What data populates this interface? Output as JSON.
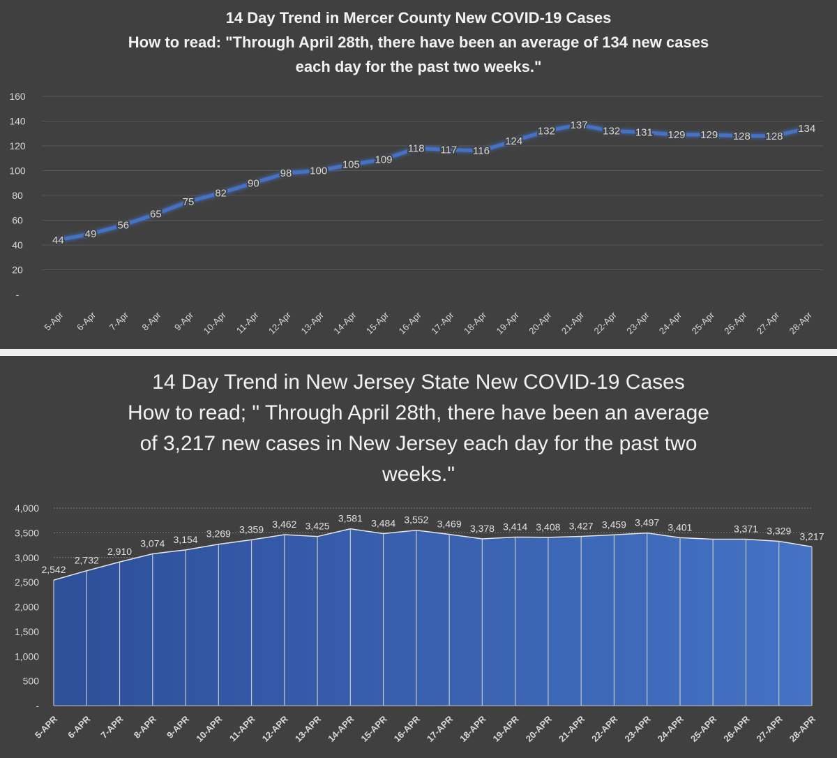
{
  "chart_data": [
    {
      "type": "line",
      "title": "14 Day Trend in Mercer County New COVID-19 Cases",
      "subtitle_lines": [
        "How to read: \"Through April 28th, there have been an average of 134 new cases",
        "each day for the past two weeks.\""
      ],
      "categories": [
        "5-Apr",
        "6-Apr",
        "7-Apr",
        "8-Apr",
        "9-Apr",
        "10-Apr",
        "11-Apr",
        "12-Apr",
        "13-Apr",
        "14-Apr",
        "15-Apr",
        "16-Apr",
        "17-Apr",
        "18-Apr",
        "19-Apr",
        "20-Apr",
        "21-Apr",
        "22-Apr",
        "23-Apr",
        "24-Apr",
        "25-Apr",
        "26-Apr",
        "27-Apr",
        "28-Apr"
      ],
      "values": [
        44,
        49,
        56,
        65,
        75,
        82,
        90,
        98,
        100,
        105,
        109,
        118,
        117,
        116,
        124,
        132,
        137,
        132,
        131,
        129,
        129,
        128,
        128,
        134
      ],
      "data_labels": [
        "44",
        "49",
        "56",
        "65",
        "75",
        "82",
        "90",
        "98",
        "100",
        "105",
        "109",
        "118",
        "117",
        "116",
        "124",
        "132",
        "137",
        "132",
        "131",
        "129",
        "129",
        "128",
        "128",
        "134"
      ],
      "y_tick_labels": [
        "-",
        "20",
        "40",
        "60",
        "80",
        "100",
        "120",
        "140",
        "160"
      ],
      "y_ticks": [
        0,
        20,
        40,
        60,
        80,
        100,
        120,
        140,
        160
      ],
      "ylim": [
        0,
        160
      ],
      "grid": true,
      "line_color": "#4472c4"
    },
    {
      "type": "area",
      "title": "14 Day Trend in New Jersey State New COVID-19 Cases",
      "subtitle_lines": [
        "How to read; \" Through April 28th, there have been an average",
        "of 3,217 new cases in New Jersey each day for the past two",
        "weeks.\""
      ],
      "categories": [
        "5-APR",
        "6-APR",
        "7-APR",
        "8-APR",
        "9-APR",
        "10-APR",
        "11-APR",
        "12-APR",
        "13-APR",
        "14-APR",
        "15-APR",
        "16-APR",
        "17-APR",
        "18-APR",
        "19-APR",
        "20-APR",
        "21-APR",
        "22-APR",
        "23-APR",
        "24-APR",
        "25-APR",
        "26-APR",
        "27-APR",
        "28-APR"
      ],
      "values": [
        2542,
        2732,
        2910,
        3074,
        3154,
        3269,
        3359,
        3462,
        3425,
        3581,
        3484,
        3552,
        3469,
        3378,
        3414,
        3408,
        3427,
        3459,
        3497,
        3401,
        3371,
        3371,
        3329,
        3217
      ],
      "data_labels": [
        "2,542",
        "2,732",
        "2,910",
        "3,074",
        "3,154",
        "3,269",
        "3,359",
        "3,462",
        "3,425",
        "3,581",
        "3,484",
        "3,552",
        "3,469",
        "3,378",
        "3,414",
        "3,408",
        "3,427",
        "3,459",
        "3,497",
        "3,401",
        "",
        "3,371",
        "3,329",
        "3,217"
      ],
      "y_tick_labels": [
        "-",
        "500",
        "1,000",
        "1,500",
        "2,000",
        "2,500",
        "3,000",
        "3,500",
        "4,000"
      ],
      "y_ticks": [
        0,
        500,
        1000,
        1500,
        2000,
        2500,
        3000,
        3500,
        4000
      ],
      "ylim": [
        0,
        4000
      ],
      "grid": true,
      "fill_color": "#4472c4"
    }
  ]
}
